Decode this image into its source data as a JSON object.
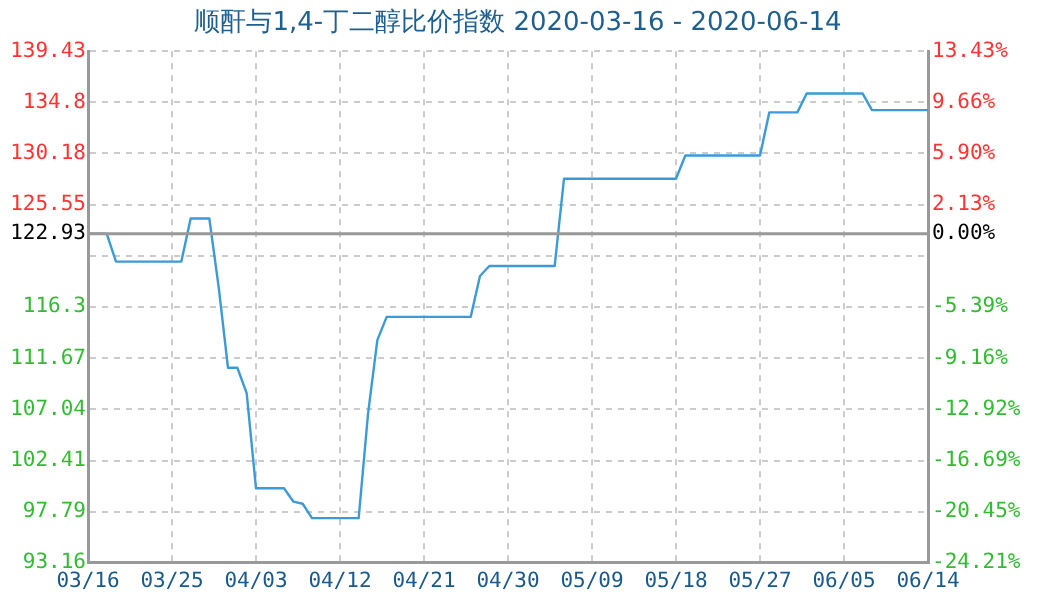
{
  "chart_data": {
    "type": "line",
    "title": "顺酐与1,4-丁二醇比价指数 2020-03-16 - 2020-06-14",
    "x": [
      "2020-03-16",
      "2020-03-18",
      "2020-03-19",
      "2020-03-26",
      "2020-03-27",
      "2020-03-29",
      "2020-03-30",
      "2020-03-31",
      "2020-04-01",
      "2020-04-02",
      "2020-04-03",
      "2020-04-06",
      "2020-04-07",
      "2020-04-08",
      "2020-04-09",
      "2020-04-14",
      "2020-04-15",
      "2020-04-16",
      "2020-04-17",
      "2020-04-26",
      "2020-04-27",
      "2020-04-28",
      "2020-05-05",
      "2020-05-06",
      "2020-05-18",
      "2020-05-19",
      "2020-05-27",
      "2020-05-28",
      "2020-05-31",
      "2020-06-01",
      "2020-06-07",
      "2020-06-08",
      "2020-06-14"
    ],
    "series": [
      {
        "color": "#3d9ad8",
        "values": [
          122.93,
          122.93,
          120.4,
          120.4,
          124.3,
          124.3,
          118.1,
          110.8,
          110.8,
          108.5,
          99.9,
          99.9,
          98.7,
          98.5,
          97.2,
          97.2,
          106.6,
          113.3,
          115.4,
          115.4,
          119.1,
          120.0,
          120.0,
          127.9,
          127.9,
          130.0,
          130.0,
          133.9,
          133.9,
          135.6,
          135.6,
          134.1,
          134.1
        ]
      }
    ],
    "xlim": [
      "2020-03-16",
      "2020-06-14"
    ],
    "xticks": [
      {
        "value": "2020-03-16",
        "label": "03/16"
      },
      {
        "value": "2020-03-25",
        "label": "03/25"
      },
      {
        "value": "2020-04-03",
        "label": "04/03"
      },
      {
        "value": "2020-04-12",
        "label": "04/12"
      },
      {
        "value": "2020-04-21",
        "label": "04/21"
      },
      {
        "value": "2020-04-30",
        "label": "04/30"
      },
      {
        "value": "2020-05-09",
        "label": "05/09"
      },
      {
        "value": "2020-05-18",
        "label": "05/18"
      },
      {
        "value": "2020-05-27",
        "label": "05/27"
      },
      {
        "value": "2020-06-05",
        "label": "06/05"
      },
      {
        "value": "2020-06-14",
        "label": "06/14"
      }
    ],
    "ylim": [
      93.16,
      139.43
    ],
    "yticks": [
      93.16,
      97.79,
      102.41,
      107.04,
      111.67,
      116.3,
      {
        "value": 120.93,
        "label": null
      },
      122.93,
      125.55,
      130.18,
      134.8,
      139.43
    ],
    "y2lim": [
      -24.21,
      13.43
    ],
    "y2ticks": [
      {
        "value": -24.21,
        "label": "-24.21%"
      },
      {
        "value": -20.45,
        "label": "-20.45%"
      },
      {
        "value": -16.69,
        "label": "-16.69%"
      },
      {
        "value": -12.92,
        "label": "-12.92%"
      },
      {
        "value": -9.16,
        "label": "-9.16%"
      },
      {
        "value": -5.39,
        "label": "-5.39%"
      },
      {
        "value": -1.63,
        "label": null
      },
      {
        "value": 0,
        "label": "0.00%"
      },
      {
        "value": 2.13,
        "label": "2.13%"
      },
      {
        "value": 5.9,
        "label": "5.90%"
      },
      {
        "value": 9.66,
        "label": "9.66%"
      },
      {
        "value": 13.43,
        "label": "13.43%"
      }
    ],
    "ref_lines": [
      {
        "axis": "y",
        "value": 122.93,
        "color": "#999999"
      }
    ],
    "grid": true,
    "marker": "none",
    "line_style": "solid"
  }
}
